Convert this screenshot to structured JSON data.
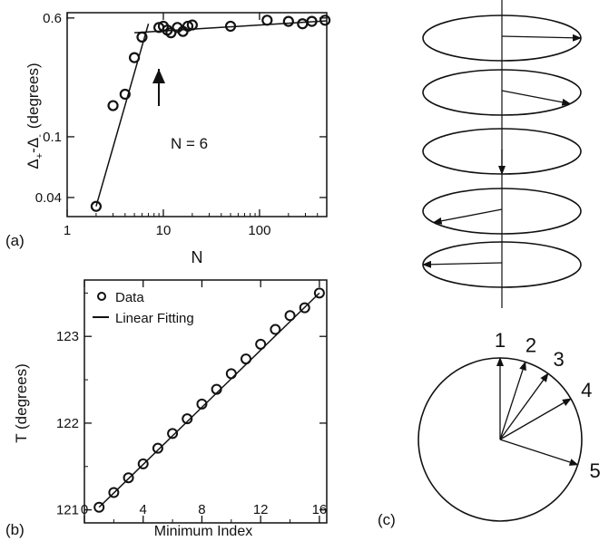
{
  "panels": {
    "a": {
      "label": "(a)"
    },
    "b": {
      "label": "(b)"
    },
    "c": {
      "label": "(c)"
    }
  },
  "chart_data": [
    {
      "type": "scatter",
      "panel": "a",
      "xlabel": "N",
      "ylabel_main": "Δ",
      "ylabel_sub1": "+",
      "ylabel_mid": "-Δ",
      "ylabel_sub2": "-",
      "ylabel_unit": "(degrees)",
      "x_scale": "log",
      "y_scale": "log",
      "xlim": [
        1,
        500
      ],
      "ylim": [
        0.03,
        0.65
      ],
      "xticks": [
        1,
        10,
        100
      ],
      "xtick_labels": [
        "1",
        "10",
        "100"
      ],
      "yticks": [
        0.04,
        0.1,
        0.6
      ],
      "ytick_labels": [
        "0.04",
        "0.1",
        "0.6"
      ],
      "annotation": "N = 6",
      "annotation_target": {
        "x": 6,
        "y": 0.46
      },
      "points": [
        {
          "x": 2,
          "y": 0.035
        },
        {
          "x": 3,
          "y": 0.16
        },
        {
          "x": 4,
          "y": 0.19
        },
        {
          "x": 5,
          "y": 0.33
        },
        {
          "x": 6,
          "y": 0.45
        },
        {
          "x": 9,
          "y": 0.52
        },
        {
          "x": 10,
          "y": 0.53
        },
        {
          "x": 11,
          "y": 0.5
        },
        {
          "x": 12,
          "y": 0.48
        },
        {
          "x": 14,
          "y": 0.52
        },
        {
          "x": 16,
          "y": 0.49
        },
        {
          "x": 18,
          "y": 0.53
        },
        {
          "x": 20,
          "y": 0.54
        },
        {
          "x": 50,
          "y": 0.53
        },
        {
          "x": 120,
          "y": 0.58
        },
        {
          "x": 200,
          "y": 0.57
        },
        {
          "x": 280,
          "y": 0.55
        },
        {
          "x": 350,
          "y": 0.57
        },
        {
          "x": 480,
          "y": 0.58
        }
      ],
      "fit_lines": [
        {
          "x": [
            2,
            7
          ],
          "y": [
            0.035,
            0.55
          ]
        },
        {
          "x": [
            5,
            500
          ],
          "y": [
            0.48,
            0.575
          ]
        }
      ]
    },
    {
      "type": "scatter",
      "panel": "b",
      "xlabel": "Minimum Index",
      "ylabel": "T  (degrees)",
      "xlim": [
        0,
        16.5
      ],
      "ylim": [
        120.85,
        123.65
      ],
      "xticks": [
        0,
        4,
        8,
        12,
        16
      ],
      "yticks": [
        121,
        122,
        123
      ],
      "legend": [
        {
          "name": "Data",
          "marker": "circle"
        },
        {
          "name": "Linear Fitting",
          "marker": "line"
        }
      ],
      "points": [
        {
          "x": 1,
          "y": 121.03
        },
        {
          "x": 2,
          "y": 121.2
        },
        {
          "x": 3,
          "y": 121.37
        },
        {
          "x": 4,
          "y": 121.53
        },
        {
          "x": 5,
          "y": 121.71
        },
        {
          "x": 6,
          "y": 121.88
        },
        {
          "x": 7,
          "y": 122.05
        },
        {
          "x": 8,
          "y": 122.22
        },
        {
          "x": 9,
          "y": 122.39
        },
        {
          "x": 10,
          "y": 122.57
        },
        {
          "x": 11,
          "y": 122.74
        },
        {
          "x": 12,
          "y": 122.91
        },
        {
          "x": 13,
          "y": 123.08
        },
        {
          "x": 14,
          "y": 123.24
        },
        {
          "x": 15,
          "y": 123.33
        },
        {
          "x": 16,
          "y": 123.5
        }
      ],
      "fit_line": {
        "x": [
          1,
          16
        ],
        "y": [
          121.03,
          123.5
        ]
      }
    }
  ],
  "diagram": {
    "arrow_angles_deg": [
      0,
      -30,
      -90,
      -150,
      180
    ],
    "circle_labels": [
      "1",
      "2",
      "3",
      "4",
      "5"
    ],
    "circle_arrow_angles_deg": [
      0,
      18,
      36,
      60,
      108
    ]
  }
}
